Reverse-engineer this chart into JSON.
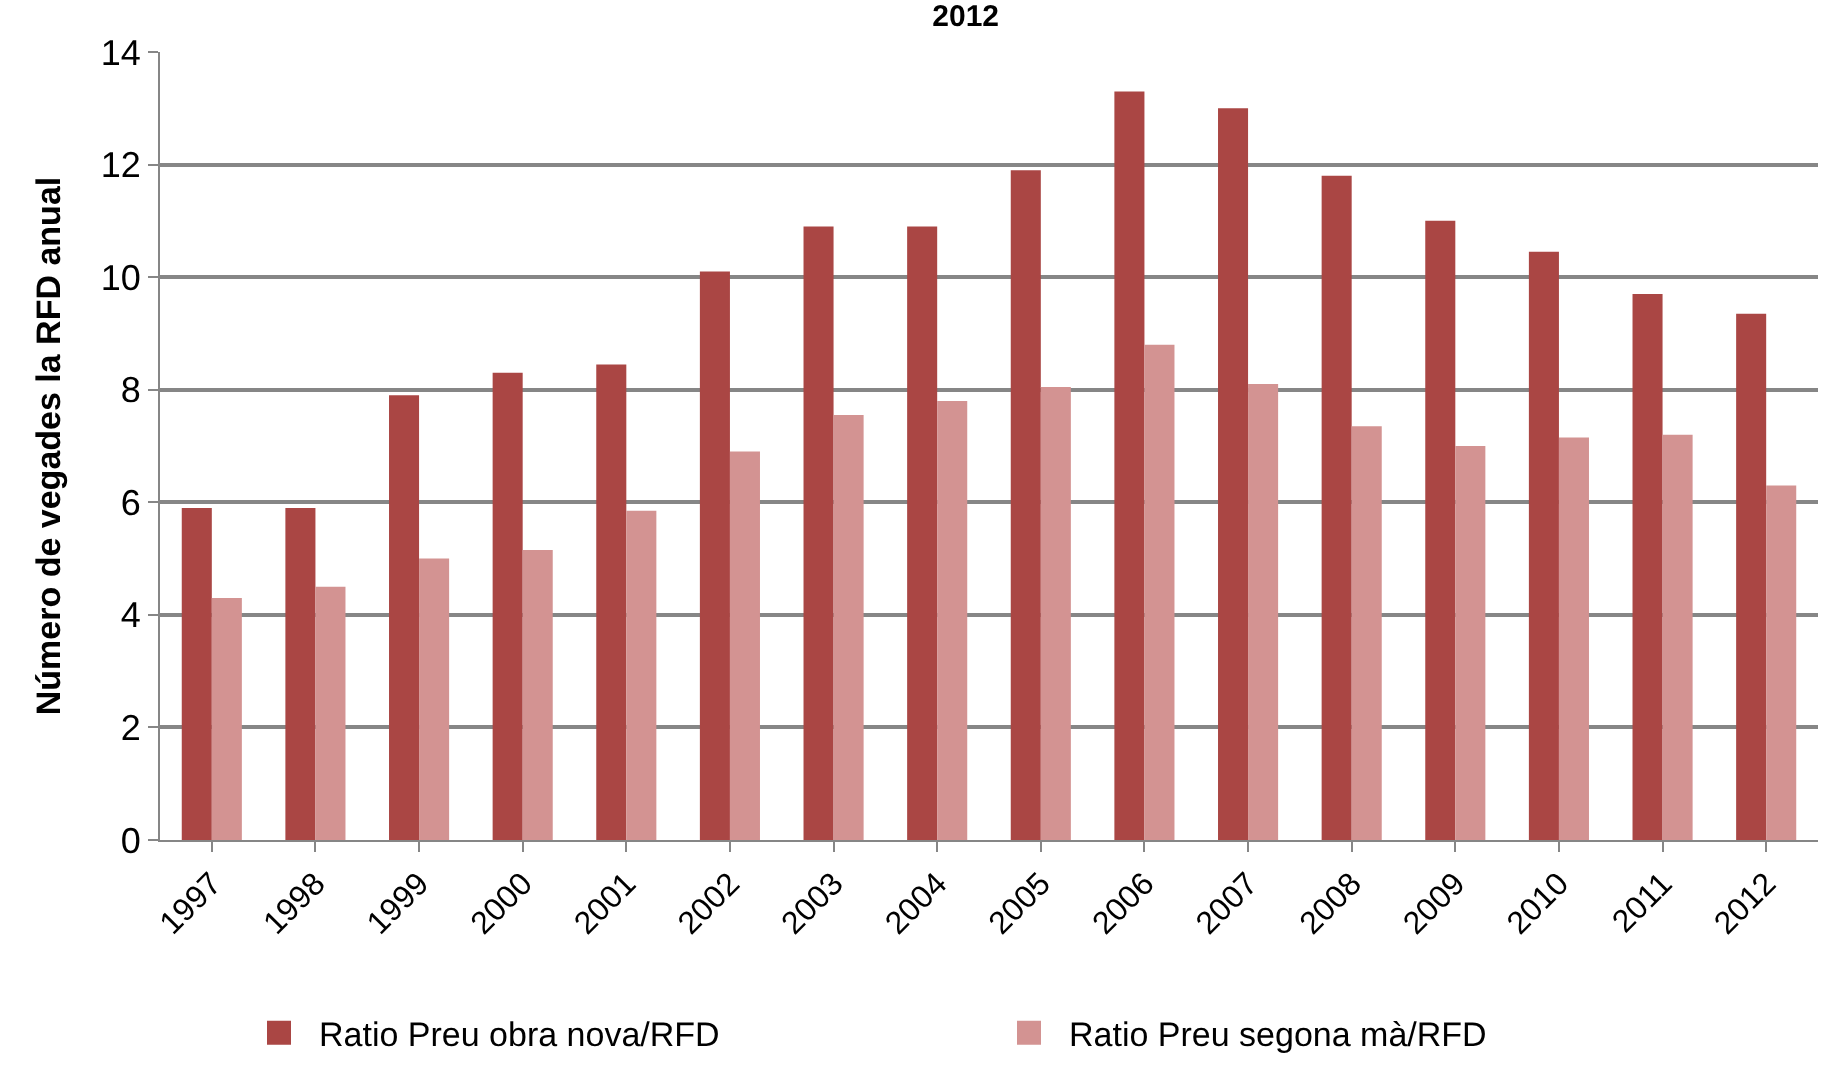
{
  "chart_data": {
    "type": "bar",
    "title": "2012",
    "ylabel": "Número de vegades la RFD anual",
    "categories": [
      "1997",
      "1998",
      "1999",
      "2000",
      "2001",
      "2002",
      "2003",
      "2004",
      "2005",
      "2006",
      "2007",
      "2008",
      "2009",
      "2010",
      "2011",
      "2012"
    ],
    "series": [
      {
        "name": "Ratio Preu obra nova/RFD",
        "color": "#aa4644",
        "values": [
          5.9,
          5.9,
          7.9,
          8.3,
          8.45,
          10.1,
          10.9,
          10.9,
          11.9,
          13.3,
          13.0,
          11.8,
          11.0,
          10.45,
          9.7,
          9.35
        ]
      },
      {
        "name": "Ratio Preu segona mà/RFD",
        "color": "#d39392",
        "values": [
          4.3,
          4.5,
          5.0,
          5.15,
          5.85,
          6.9,
          7.55,
          7.8,
          8.05,
          8.8,
          8.1,
          7.35,
          7.0,
          7.15,
          7.2,
          6.3
        ]
      }
    ],
    "ylim": [
      0,
      14
    ],
    "yticks": [
      0,
      2,
      4,
      6,
      8,
      10,
      12,
      14
    ],
    "grid": "y",
    "legend": "bottom"
  }
}
